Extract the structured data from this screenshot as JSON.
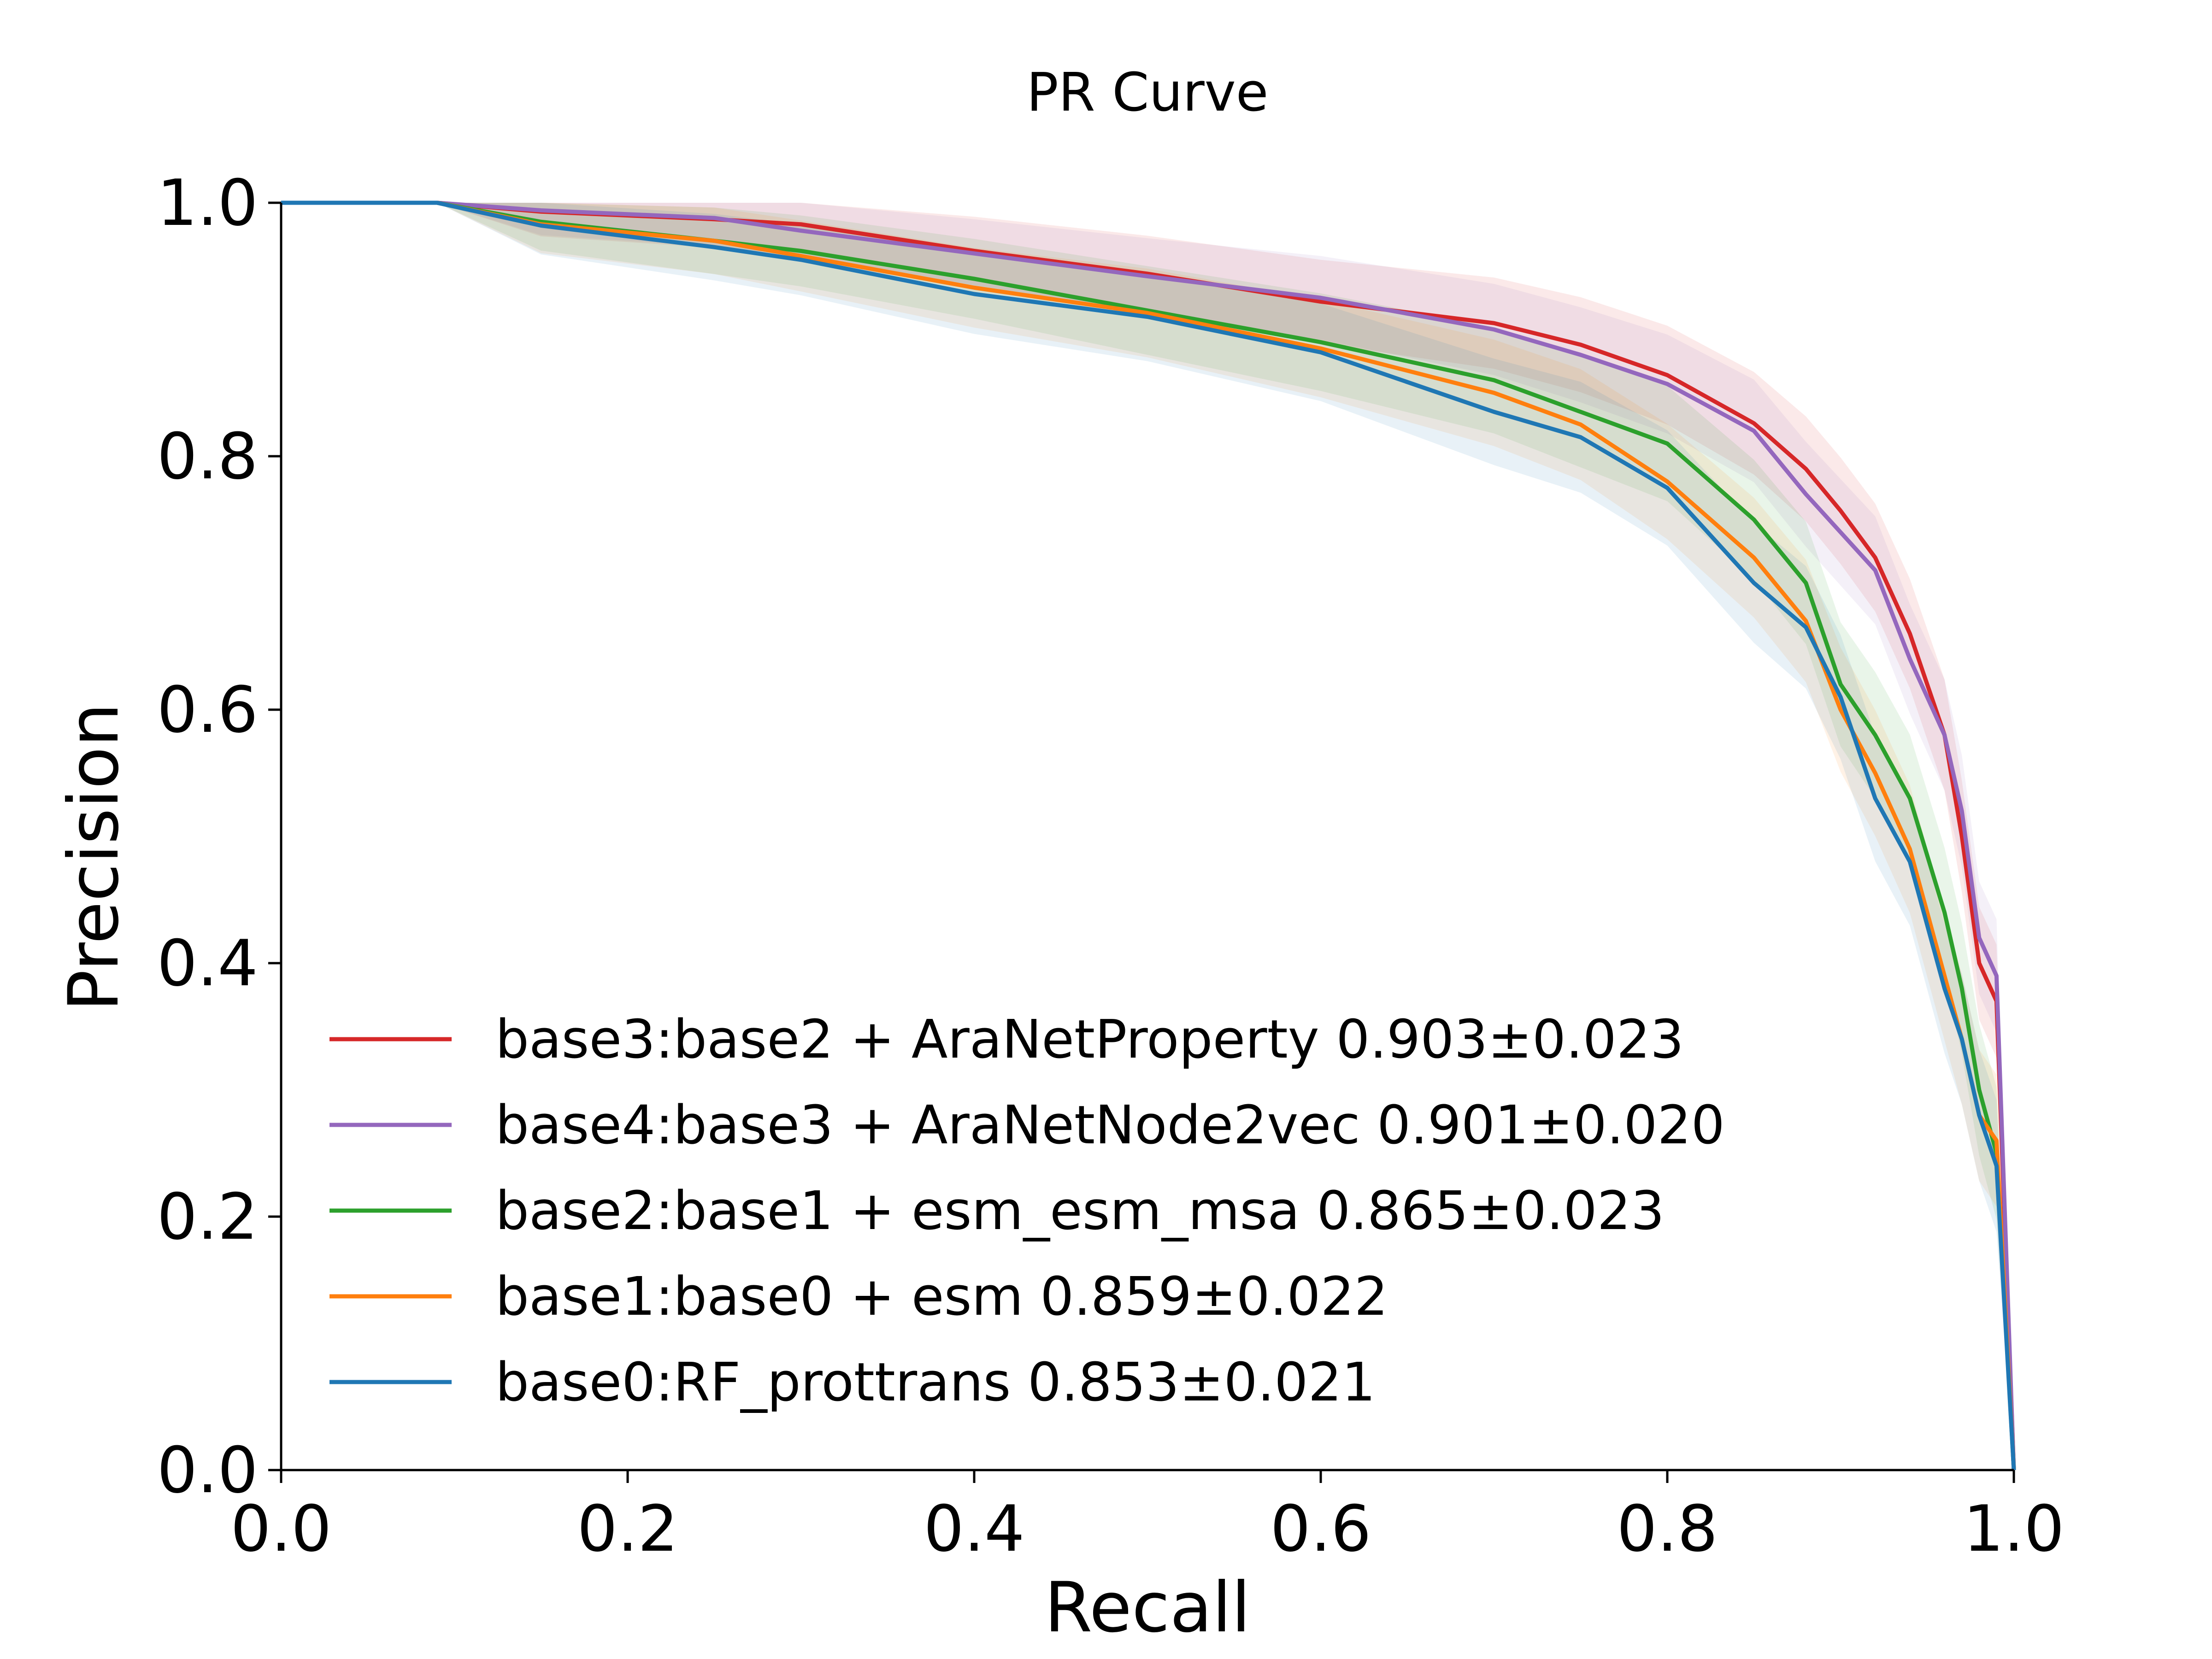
{
  "chart_data": {
    "type": "line",
    "title": "PR Curve",
    "xlabel": "Recall",
    "ylabel": "Precision",
    "xlim": [
      0.0,
      1.0
    ],
    "ylim": [
      0.0,
      1.0
    ],
    "xticks": [
      "0.0",
      "0.2",
      "0.4",
      "0.6",
      "0.8",
      "1.0"
    ],
    "yticks": [
      "0.0",
      "0.2",
      "0.4",
      "0.6",
      "0.8",
      "1.0"
    ],
    "grid": false,
    "legend_position": "lower-left",
    "series": [
      {
        "name": "base3:base2 + AraNetProperty 0.903±0.023",
        "color": "#d62728",
        "band": 0.03,
        "x": [
          0.0,
          0.09,
          0.15,
          0.25,
          0.3,
          0.4,
          0.5,
          0.6,
          0.7,
          0.75,
          0.8,
          0.85,
          0.88,
          0.9,
          0.92,
          0.94,
          0.96,
          0.97,
          0.98,
          0.99,
          1.0
        ],
        "y": [
          1.0,
          1.0,
          0.993,
          0.987,
          0.983,
          0.962,
          0.944,
          0.922,
          0.905,
          0.888,
          0.864,
          0.826,
          0.79,
          0.757,
          0.72,
          0.66,
          0.58,
          0.5,
          0.4,
          0.37,
          0.0
        ]
      },
      {
        "name": "base4:base3 + AraNetNode2vec 0.901±0.020",
        "color": "#9467bd",
        "band": 0.03,
        "x": [
          0.0,
          0.09,
          0.15,
          0.25,
          0.3,
          0.4,
          0.5,
          0.6,
          0.7,
          0.75,
          0.8,
          0.85,
          0.88,
          0.9,
          0.92,
          0.94,
          0.96,
          0.97,
          0.98,
          0.99,
          1.0
        ],
        "y": [
          1.0,
          1.0,
          0.994,
          0.988,
          0.978,
          0.96,
          0.942,
          0.925,
          0.9,
          0.88,
          0.857,
          0.82,
          0.77,
          0.74,
          0.71,
          0.64,
          0.58,
          0.52,
          0.42,
          0.39,
          0.0
        ]
      },
      {
        "name": "base2:base1 + esm_esm_msa 0.865±0.023",
        "color": "#2ca02c",
        "band": 0.035,
        "x": [
          0.0,
          0.09,
          0.15,
          0.25,
          0.3,
          0.4,
          0.5,
          0.6,
          0.7,
          0.75,
          0.8,
          0.85,
          0.88,
          0.9,
          0.92,
          0.94,
          0.96,
          0.97,
          0.98,
          0.99,
          1.0
        ],
        "y": [
          1.0,
          1.0,
          0.985,
          0.97,
          0.962,
          0.94,
          0.915,
          0.89,
          0.86,
          0.835,
          0.81,
          0.75,
          0.7,
          0.62,
          0.58,
          0.53,
          0.44,
          0.38,
          0.3,
          0.25,
          0.0
        ]
      },
      {
        "name": "base1:base0 + esm 0.859±0.022",
        "color": "#ff7f0e",
        "band": 0.035,
        "x": [
          0.0,
          0.09,
          0.15,
          0.25,
          0.3,
          0.4,
          0.5,
          0.6,
          0.7,
          0.75,
          0.8,
          0.85,
          0.88,
          0.9,
          0.92,
          0.94,
          0.96,
          0.97,
          0.98,
          0.99,
          1.0
        ],
        "y": [
          1.0,
          1.0,
          0.983,
          0.97,
          0.958,
          0.933,
          0.913,
          0.885,
          0.85,
          0.825,
          0.78,
          0.72,
          0.67,
          0.6,
          0.55,
          0.49,
          0.39,
          0.34,
          0.28,
          0.26,
          0.0
        ]
      },
      {
        "name": "base0:RF_prottrans 0.853±0.021",
        "color": "#1f77b4",
        "band": 0.035,
        "x": [
          0.0,
          0.09,
          0.15,
          0.25,
          0.3,
          0.4,
          0.5,
          0.6,
          0.7,
          0.75,
          0.8,
          0.85,
          0.88,
          0.9,
          0.92,
          0.94,
          0.96,
          0.97,
          0.98,
          0.99,
          1.0
        ],
        "y": [
          1.0,
          1.0,
          0.982,
          0.965,
          0.955,
          0.928,
          0.91,
          0.882,
          0.835,
          0.815,
          0.775,
          0.7,
          0.665,
          0.61,
          0.53,
          0.48,
          0.38,
          0.34,
          0.28,
          0.24,
          0.0
        ]
      }
    ]
  }
}
